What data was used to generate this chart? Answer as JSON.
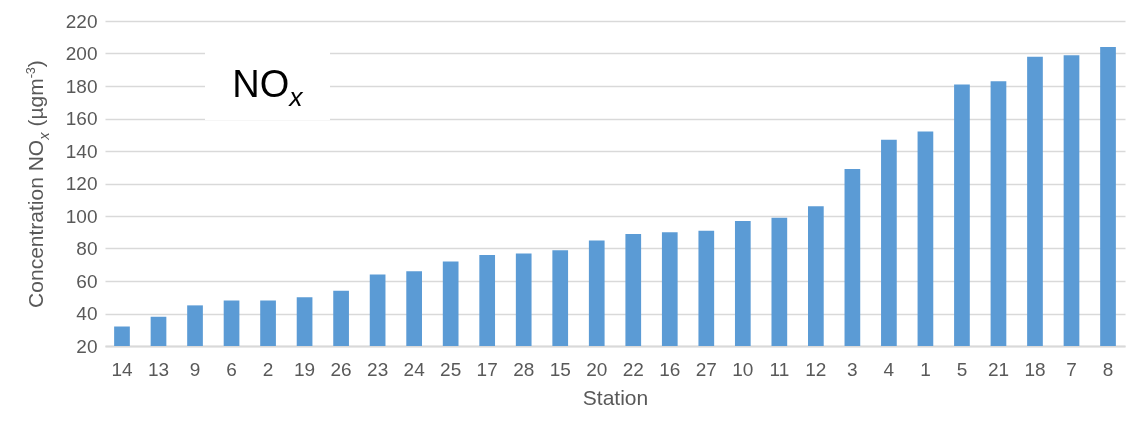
{
  "chart_data": {
    "type": "bar",
    "title": "NO$_{x}$",
    "xlabel": "Station",
    "ylabel": "Concentration NO$_{x}$ (µgm$^{-3}$)",
    "categories": [
      "14",
      "13",
      "9",
      "6",
      "2",
      "19",
      "26",
      "23",
      "24",
      "25",
      "17",
      "28",
      "15",
      "20",
      "22",
      "16",
      "27",
      "10",
      "11",
      "12",
      "3",
      "4",
      "1",
      "5",
      "21",
      "18",
      "7",
      "8"
    ],
    "values": [
      32,
      38,
      45,
      48,
      48,
      50,
      54,
      64,
      66,
      72,
      76,
      77,
      79,
      85,
      89,
      90,
      91,
      97,
      99,
      106,
      129,
      147,
      152,
      181,
      183,
      198,
      199,
      204
    ],
    "color": "#5b9bd5",
    "ylim": [
      20,
      220
    ],
    "yticks": [
      20,
      40,
      60,
      80,
      100,
      120,
      140,
      160,
      180,
      200,
      220
    ],
    "grid": "y"
  }
}
